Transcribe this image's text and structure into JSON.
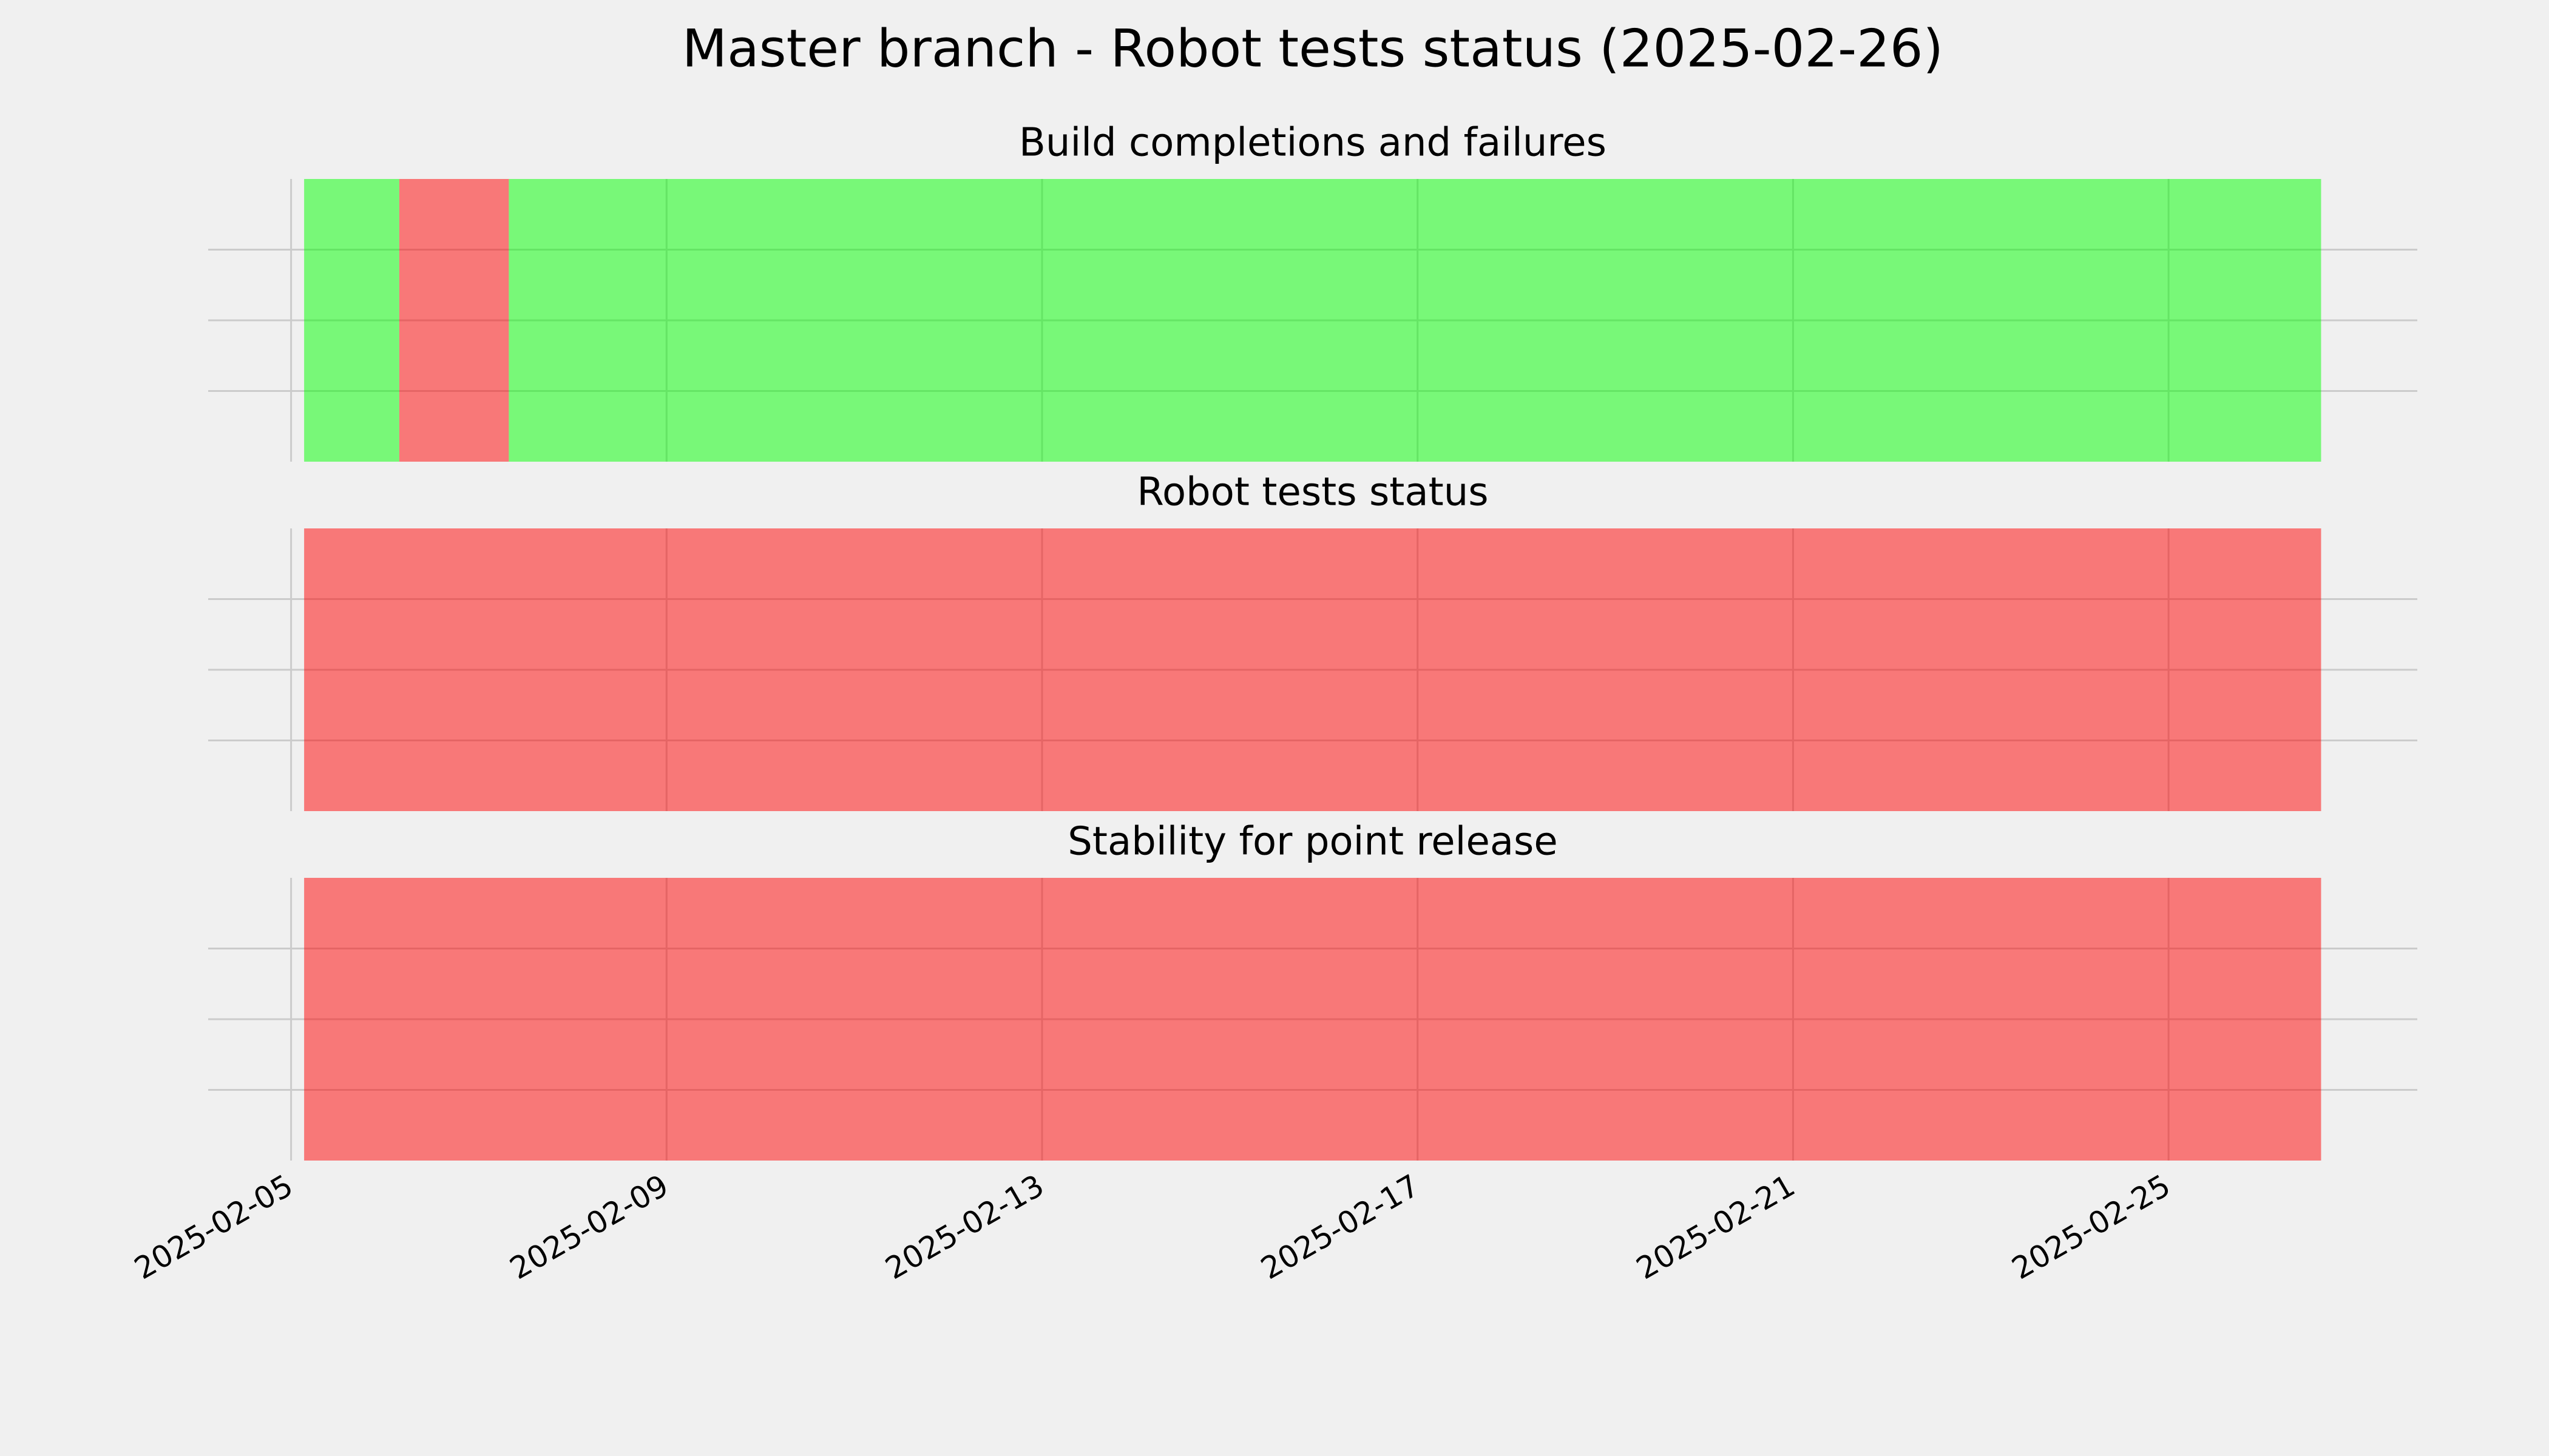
{
  "title": "Master branch - Robot tests status (2025-02-26)",
  "chart_data": [
    {
      "type": "timeline",
      "title": "Build completions and failures",
      "segments": [
        {
          "start": "2025-02-05T03:20:00Z",
          "end": "2025-02-06T03:40:00Z",
          "color": "#00ff00"
        },
        {
          "start": "2025-02-06T03:40:00Z",
          "end": "2025-02-07T07:40:00Z",
          "color": "#ff0000"
        },
        {
          "start": "2025-02-07T07:40:00Z",
          "end": "2025-02-26T15:00:00Z",
          "color": "#00ff00"
        }
      ],
      "xlim": [
        "2025-02-04T02:48:00Z",
        "2025-02-27T15:36:00Z"
      ],
      "xticks": [
        "2025-02-05",
        "2025-02-09",
        "2025-02-13",
        "2025-02-17",
        "2025-02-21",
        "2025-02-25"
      ],
      "ylim": [
        0,
        1
      ],
      "yticks": [
        0.25,
        0.5,
        0.75
      ],
      "grid": true
    },
    {
      "type": "timeline",
      "title": "Robot tests status",
      "segments": [
        {
          "start": "2025-02-05T03:20:00Z",
          "end": "2025-02-26T15:00:00Z",
          "color": "#ff0000"
        }
      ],
      "xlim": [
        "2025-02-04T02:48:00Z",
        "2025-02-27T15:36:00Z"
      ],
      "xticks": [
        "2025-02-05",
        "2025-02-09",
        "2025-02-13",
        "2025-02-17",
        "2025-02-21",
        "2025-02-25"
      ],
      "ylim": [
        0,
        1
      ],
      "yticks": [
        0.25,
        0.5,
        0.75
      ],
      "grid": true
    },
    {
      "type": "timeline",
      "title": "Stability for point release",
      "segments": [
        {
          "start": "2025-02-05T03:20:00Z",
          "end": "2025-02-26T15:00:00Z",
          "color": "#ff0000"
        }
      ],
      "xlim": [
        "2025-02-04T02:48:00Z",
        "2025-02-27T15:36:00Z"
      ],
      "xticks": [
        "2025-02-05",
        "2025-02-09",
        "2025-02-13",
        "2025-02-17",
        "2025-02-21",
        "2025-02-25"
      ],
      "ylim": [
        0,
        1
      ],
      "yticks": [
        0.25,
        0.5,
        0.75
      ],
      "grid": true,
      "show_xtick_labels": true
    }
  ]
}
